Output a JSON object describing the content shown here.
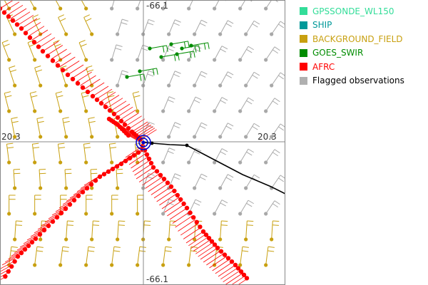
{
  "map": {
    "labels": {
      "top": "-66.1",
      "bottom": "-66.1",
      "left": "20.3",
      "right": "20.3"
    },
    "colors": {
      "background_field": "#c8a010",
      "flagged": "#a8a8a8",
      "afrc": "#ff0000",
      "goes": "#008c00",
      "track": "#000000",
      "center_marker": "#0000cc",
      "axes": "#888888"
    }
  },
  "legend": {
    "items": [
      {
        "label": "GPSSONDE_WL150",
        "color": "#33dd99"
      },
      {
        "label": "SHIP",
        "color": "#009999"
      },
      {
        "label": "BACKGROUND_FIELD",
        "color": "#c8a010"
      },
      {
        "label": "GOES_SWIR",
        "color": "#008c00"
      },
      {
        "label": "AFRC",
        "color": "#ff0000"
      },
      {
        "label": "Flagged observations",
        "color": "#b0b0b0"
      }
    ]
  }
}
